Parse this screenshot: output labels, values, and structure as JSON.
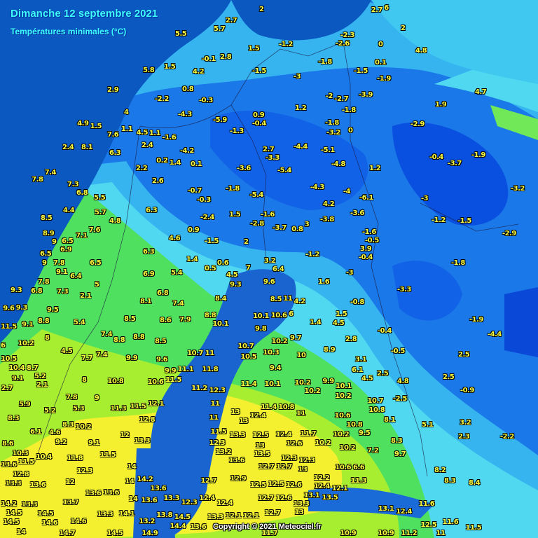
{
  "header": {
    "title": "Dimanche 12 septembre 2021",
    "subtitle": "Températures minimales (°C)"
  },
  "footer": {
    "copyright": "Copyright © 2021 Meteociel.fr"
  },
  "colors": {
    "sea": "#0a58c0",
    "cold_deep": "#0a50e0",
    "cold": "#1e78f0",
    "cool": "#36b4f0",
    "light": "#50d8f0",
    "mild": "#50e060",
    "warm": "#a8ee30",
    "warmest": "#f4f030",
    "label": "#ffff40"
  },
  "stations": [
    "2",
    "2.7",
    "6",
    "2",
    "5.5",
    "5.7",
    "2.7",
    "1.5",
    "-1.2",
    "-2.3",
    "-2.6",
    "0",
    "4.8",
    "-0.1",
    "2.8",
    "1.5",
    "5.8",
    "4.2",
    "-1.5",
    "-3",
    "-1.8",
    "-1.5",
    "0.1",
    "-1.9",
    "4.7",
    "2.9",
    "-2.2",
    "0.8",
    "-0.3",
    "-2",
    "-2.7",
    "-3.9",
    "1.9",
    "4",
    "-4.3",
    "-5.9",
    "0.9",
    "-0.4",
    "1.2",
    "-1.8",
    "4.9",
    "1.5",
    "1.1",
    "7.6",
    "4.5",
    "1.1",
    "-1.6",
    "-1.3",
    "-1.8",
    "-3.2",
    "0",
    "-2.9",
    "2.4",
    "8.1",
    "6.3",
    "2.4",
    "-4.2",
    "2.7",
    "-3.3",
    "-4.4",
    "-5.1",
    "0.2",
    "1.4",
    "0.1",
    "-3.6",
    "-5.4",
    "-4.8",
    "1.2",
    "-0.4",
    "-3.7",
    "-1.9",
    "7.4",
    "7.8",
    "2.2",
    "2.6",
    "7.3",
    "6.8",
    "-0.7",
    "-0.3",
    "-1.8",
    "-5.4",
    "-4.3",
    "-4",
    "-6.1",
    "-3",
    "-3.2",
    "5.5",
    "4.4",
    "5.7",
    "6.3",
    "-2.4",
    "1.5",
    "8.5",
    "4.8",
    "-1.6",
    "-2.8",
    "4.2",
    "-3.6",
    "-3.8",
    "-3.7",
    "0.8",
    "3",
    "-1.2",
    "-1.5",
    "-2.9",
    "8.9",
    "7.6",
    "7.1",
    "0.9",
    "4.6",
    "-1.5",
    "2",
    "-1.6",
    "-0.5",
    "9",
    "6.5",
    "6.9",
    "3.9",
    "6.3",
    "-1.2",
    "-0.4",
    "6.5",
    "9",
    "7.8",
    "6.5",
    "1.4",
    "0.6",
    "3.2",
    "6.4",
    "-1.8",
    "9.1",
    "6.4",
    "6.9",
    "5.4",
    "0.5",
    "4.5",
    "7",
    "-3",
    "9.3",
    "6.8",
    "7.3",
    "5",
    "9.3",
    "9.6",
    "1.6",
    "-3.3",
    "7.8",
    "2.1",
    "6.8",
    "9.6",
    "9.3",
    "9.5",
    "8.1",
    "7.4",
    "8.4",
    "8.5",
    "11",
    "4.2",
    "-0.8",
    "8.8",
    "5.4",
    "8.5",
    "8.6",
    "7.9",
    "8.8",
    "10.1",
    "10.1",
    "10.6",
    "6",
    "1.4",
    "1.5",
    "4.5",
    "-1.9",
    "11.5",
    "9.1",
    "7.4",
    "9.8",
    "-4.4",
    "8",
    "8.8",
    "8.8",
    "8.5",
    "10.7",
    "11",
    "2.8",
    "-0.4",
    "6",
    "10.2",
    "10.7",
    "10.2",
    "9.7",
    "4.5",
    "7.7",
    "7.4",
    "9.9",
    "9.6",
    "11.8",
    "10.5",
    "10.3",
    "10",
    "8.9",
    "-0.5",
    "2.5",
    "10.5",
    "10.4",
    "8.7",
    "9.9",
    "11.1",
    "9.4",
    "6.1",
    "3.1",
    "2.5",
    "9.1",
    "5.2",
    "2.1",
    "8",
    "10.8",
    "10.6",
    "11.5",
    "11.4",
    "10.1",
    "10.2",
    "9.9",
    "10.1",
    "4.5",
    "4.8",
    "2.5",
    "2.7",
    "11.2",
    "12.3",
    "10.2",
    "10.2",
    "-0.9",
    "5.9",
    "5.2",
    "7.8",
    "9",
    "11.3",
    "11.5",
    "12.1",
    "11",
    "11.4",
    "10.8",
    "10.7",
    "10.8",
    "-2.5",
    "5.3",
    "8.3",
    "8.3",
    "10.2",
    "12.8",
    "11",
    "13",
    "13",
    "12.4",
    "11",
    "10.6",
    "8.1",
    "5.1",
    "3.2",
    "6.1",
    "4.6",
    "9.2",
    "9.1",
    "12",
    "11.5",
    "13.3",
    "12.5",
    "12.4",
    "12.6",
    "11.7",
    "10.2",
    "10.2",
    "10.8",
    "9.5",
    "8.3",
    "2.3",
    "-2.2",
    "8.6",
    "13.3",
    "12.3",
    "13",
    "10.2",
    "7.2",
    "9.7",
    "10.3",
    "10.4",
    "13.2",
    "13.5",
    "13.6",
    "11.8",
    "11.5",
    "12.3",
    "12.3",
    "13.6",
    "11.5",
    "12.7",
    "12.7",
    "13",
    "10.6",
    "6.6",
    "12.3",
    "14",
    "12.8",
    "8.2",
    "13.3",
    "8.3",
    "8.4",
    "13.6",
    "12",
    "14",
    "14.2",
    "12.7",
    "12.9",
    "12.2",
    "11.3",
    "13.6",
    "13.6",
    "13.6",
    "12.5",
    "12.5",
    "12.6",
    "12.4",
    "12.1",
    "13.7",
    "14",
    "13.6",
    "13.3",
    "12.3",
    "12.4",
    "12.4",
    "12.7",
    "12.6",
    "13.3",
    "13.1",
    "13.5",
    "11.6",
    "14.2",
    "13.3",
    "14.5",
    "14.5",
    "13.3",
    "14.1",
    "13.8",
    "14.5",
    "13.3",
    "12.1",
    "12.1",
    "12.7",
    "13",
    "13.1",
    "12.4",
    "14.5",
    "14.6",
    "14.6",
    "13.2",
    "14.4",
    "13.6",
    "12.5",
    "11.6",
    "11.5",
    "14",
    "14.7",
    "14.5",
    "14.9",
    "11.7",
    "10.9",
    "10.9",
    "11.2",
    "11"
  ]
}
